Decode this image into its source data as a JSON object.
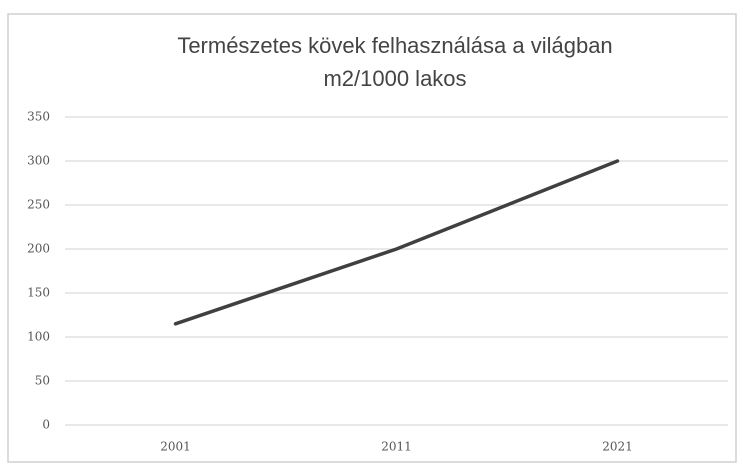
{
  "chart_data": {
    "type": "line",
    "title": "Természetes kövek felhasználása a világban",
    "subtitle": "m2/1000 lakos",
    "categories": [
      "2001",
      "2011",
      "2021"
    ],
    "values": [
      115,
      200,
      300
    ],
    "color": "#404040",
    "ylim": [
      0,
      350
    ],
    "yticks": [
      0,
      50,
      100,
      150,
      200,
      250,
      300,
      350
    ],
    "grid": true
  }
}
